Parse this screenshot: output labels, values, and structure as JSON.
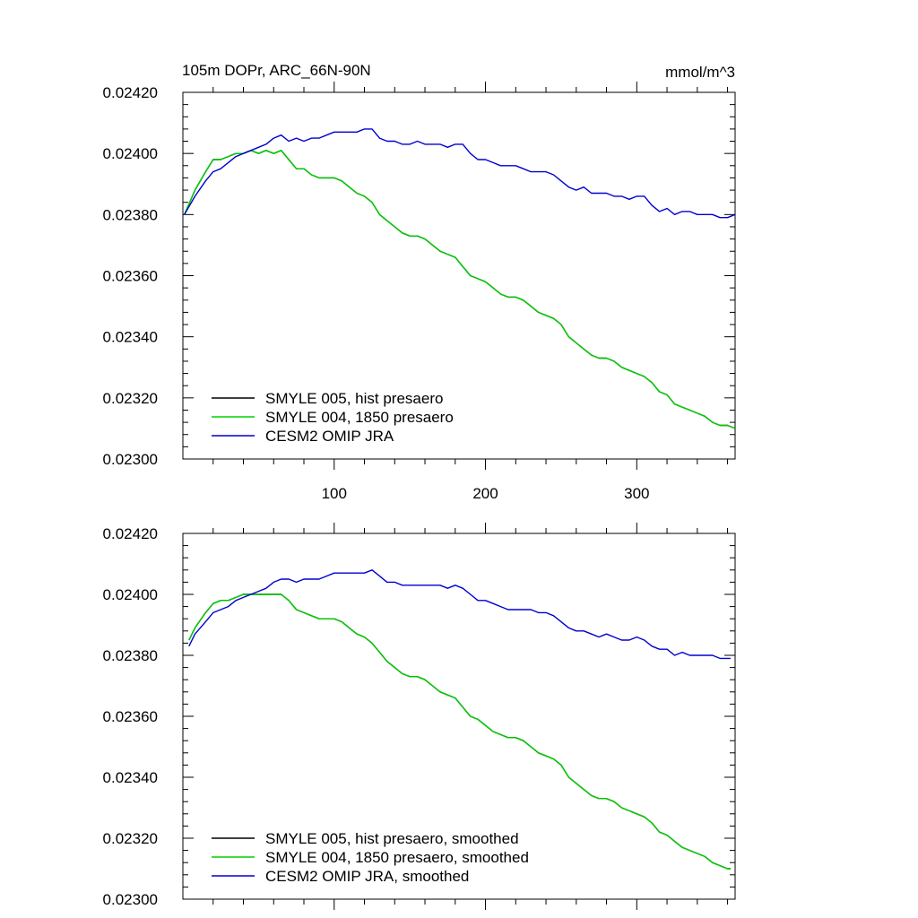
{
  "header": {
    "title": "105m DOPr, ARC_66N-90N",
    "units": "mmol/m^3"
  },
  "chart_data": [
    {
      "type": "line",
      "xlim": [
        0,
        365
      ],
      "ylim": [
        0.023,
        0.0242
      ],
      "yticks": [
        "0.02300",
        "0.02320",
        "0.02340",
        "0.02360",
        "0.02380",
        "0.02400",
        "0.02420"
      ],
      "xticks": [
        "100",
        "200",
        "300"
      ],
      "legend_position": "bottom-left",
      "series": [
        {
          "name": "SMYLE 005, hist presaero",
          "color": "#000000",
          "x": [
            1,
            8,
            15,
            20,
            25,
            30,
            35,
            40,
            45,
            50,
            55,
            60,
            65,
            70,
            75,
            80,
            85,
            90,
            95,
            100,
            105,
            110,
            115,
            120,
            125,
            130,
            135,
            140,
            145,
            150,
            155,
            160,
            165,
            170,
            175,
            180,
            185,
            190,
            195,
            200,
            205,
            210,
            215,
            220,
            225,
            230,
            235,
            240,
            245,
            250,
            255,
            260,
            265,
            270,
            275,
            280,
            285,
            290,
            295,
            300,
            305,
            310,
            315,
            320,
            325,
            330,
            335,
            340,
            345,
            350,
            355,
            360,
            365
          ],
          "values": [
            0.0238,
            0.02388,
            0.02394,
            0.02398,
            0.02398,
            0.02399,
            0.024,
            0.024,
            0.02401,
            0.024,
            0.02401,
            0.024,
            0.02401,
            0.02398,
            0.02395,
            0.02395,
            0.02393,
            0.02392,
            0.02392,
            0.02392,
            0.02391,
            0.02389,
            0.02387,
            0.02386,
            0.02384,
            0.0238,
            0.02378,
            0.02376,
            0.02374,
            0.02373,
            0.02373,
            0.02372,
            0.0237,
            0.02368,
            0.02367,
            0.02366,
            0.02363,
            0.0236,
            0.02359,
            0.02358,
            0.02356,
            0.02354,
            0.02353,
            0.02353,
            0.02352,
            0.0235,
            0.02348,
            0.02347,
            0.02346,
            0.02344,
            0.0234,
            0.02338,
            0.02336,
            0.02334,
            0.02333,
            0.02333,
            0.02332,
            0.0233,
            0.02329,
            0.02328,
            0.02327,
            0.02325,
            0.02322,
            0.02321,
            0.02318,
            0.02317,
            0.02316,
            0.02315,
            0.02314,
            0.02312,
            0.02311,
            0.02311,
            0.0231
          ]
        },
        {
          "name": "SMYLE 004, 1850 presaero",
          "color": "#00d000",
          "x": [
            1,
            8,
            15,
            20,
            25,
            30,
            35,
            40,
            45,
            50,
            55,
            60,
            65,
            70,
            75,
            80,
            85,
            90,
            95,
            100,
            105,
            110,
            115,
            120,
            125,
            130,
            135,
            140,
            145,
            150,
            155,
            160,
            165,
            170,
            175,
            180,
            185,
            190,
            195,
            200,
            205,
            210,
            215,
            220,
            225,
            230,
            235,
            240,
            245,
            250,
            255,
            260,
            265,
            270,
            275,
            280,
            285,
            290,
            295,
            300,
            305,
            310,
            315,
            320,
            325,
            330,
            335,
            340,
            345,
            350,
            355,
            360,
            365
          ],
          "values": [
            0.0238,
            0.02388,
            0.02394,
            0.02398,
            0.02398,
            0.02399,
            0.024,
            0.024,
            0.02401,
            0.024,
            0.02401,
            0.024,
            0.02401,
            0.02398,
            0.02395,
            0.02395,
            0.02393,
            0.02392,
            0.02392,
            0.02392,
            0.02391,
            0.02389,
            0.02387,
            0.02386,
            0.02384,
            0.0238,
            0.02378,
            0.02376,
            0.02374,
            0.02373,
            0.02373,
            0.02372,
            0.0237,
            0.02368,
            0.02367,
            0.02366,
            0.02363,
            0.0236,
            0.02359,
            0.02358,
            0.02356,
            0.02354,
            0.02353,
            0.02353,
            0.02352,
            0.0235,
            0.02348,
            0.02347,
            0.02346,
            0.02344,
            0.0234,
            0.02338,
            0.02336,
            0.02334,
            0.02333,
            0.02333,
            0.02332,
            0.0233,
            0.02329,
            0.02328,
            0.02327,
            0.02325,
            0.02322,
            0.02321,
            0.02318,
            0.02317,
            0.02316,
            0.02315,
            0.02314,
            0.02312,
            0.02311,
            0.02311,
            0.0231
          ]
        },
        {
          "name": "CESM2 OMIP JRA",
          "color": "#0000d0",
          "x": [
            1,
            8,
            15,
            20,
            25,
            30,
            35,
            40,
            45,
            50,
            55,
            60,
            65,
            70,
            75,
            80,
            85,
            90,
            95,
            100,
            105,
            110,
            115,
            120,
            125,
            130,
            135,
            140,
            145,
            150,
            155,
            160,
            165,
            170,
            175,
            180,
            185,
            190,
            195,
            200,
            205,
            210,
            215,
            220,
            225,
            230,
            235,
            240,
            245,
            250,
            255,
            260,
            265,
            270,
            275,
            280,
            285,
            290,
            295,
            300,
            305,
            310,
            315,
            320,
            325,
            330,
            335,
            340,
            345,
            350,
            355,
            360,
            365
          ],
          "values": [
            0.0238,
            0.02386,
            0.02391,
            0.02394,
            0.02395,
            0.02397,
            0.02399,
            0.024,
            0.02401,
            0.02402,
            0.02403,
            0.02405,
            0.02406,
            0.02404,
            0.02405,
            0.02404,
            0.02405,
            0.02405,
            0.02406,
            0.02407,
            0.02407,
            0.02407,
            0.02407,
            0.02408,
            0.02408,
            0.02405,
            0.02404,
            0.02404,
            0.02403,
            0.02403,
            0.02404,
            0.02403,
            0.02403,
            0.02403,
            0.02402,
            0.02403,
            0.02403,
            0.024,
            0.02398,
            0.02398,
            0.02397,
            0.02396,
            0.02396,
            0.02396,
            0.02395,
            0.02394,
            0.02394,
            0.02394,
            0.02393,
            0.02391,
            0.02389,
            0.02388,
            0.02389,
            0.02387,
            0.02387,
            0.02387,
            0.02386,
            0.02386,
            0.02385,
            0.02386,
            0.02386,
            0.02383,
            0.02381,
            0.02382,
            0.0238,
            0.02381,
            0.02381,
            0.0238,
            0.0238,
            0.0238,
            0.02379,
            0.02379,
            0.0238
          ]
        }
      ]
    },
    {
      "type": "line",
      "xlim": [
        0,
        365
      ],
      "ylim": [
        0.023,
        0.0242
      ],
      "yticks": [
        "0.02300",
        "0.02320",
        "0.02340",
        "0.02360",
        "0.02380",
        "0.02400",
        "0.02420"
      ],
      "xticks": [],
      "legend_position": "bottom-left",
      "series": [
        {
          "name": "SMYLE 005, hist presaero, smoothed",
          "color": "#000000",
          "x": [
            4,
            8,
            15,
            20,
            25,
            30,
            35,
            40,
            45,
            50,
            55,
            60,
            65,
            70,
            75,
            80,
            85,
            90,
            95,
            100,
            105,
            110,
            115,
            120,
            125,
            130,
            135,
            140,
            145,
            150,
            155,
            160,
            165,
            170,
            175,
            180,
            185,
            190,
            195,
            200,
            205,
            210,
            215,
            220,
            225,
            230,
            235,
            240,
            245,
            250,
            255,
            260,
            265,
            270,
            275,
            280,
            285,
            290,
            295,
            300,
            305,
            310,
            315,
            320,
            325,
            330,
            335,
            340,
            345,
            350,
            355,
            360,
            362
          ],
          "values": [
            0.02385,
            0.02389,
            0.02394,
            0.02397,
            0.02398,
            0.02398,
            0.02399,
            0.024,
            0.024,
            0.024,
            0.024,
            0.024,
            0.024,
            0.02398,
            0.02395,
            0.02394,
            0.02393,
            0.02392,
            0.02392,
            0.02392,
            0.02391,
            0.02389,
            0.02387,
            0.02386,
            0.02384,
            0.02381,
            0.02378,
            0.02376,
            0.02374,
            0.02373,
            0.02373,
            0.02372,
            0.0237,
            0.02368,
            0.02367,
            0.02366,
            0.02363,
            0.0236,
            0.02359,
            0.02357,
            0.02355,
            0.02354,
            0.02353,
            0.02353,
            0.02352,
            0.0235,
            0.02348,
            0.02347,
            0.02346,
            0.02344,
            0.0234,
            0.02338,
            0.02336,
            0.02334,
            0.02333,
            0.02333,
            0.02332,
            0.0233,
            0.02329,
            0.02328,
            0.02327,
            0.02325,
            0.02322,
            0.02321,
            0.02319,
            0.02317,
            0.02316,
            0.02315,
            0.02314,
            0.02312,
            0.02311,
            0.0231,
            0.0231
          ]
        },
        {
          "name": "SMYLE 004, 1850 presaero, smoothed",
          "color": "#00d000",
          "x": [
            4,
            8,
            15,
            20,
            25,
            30,
            35,
            40,
            45,
            50,
            55,
            60,
            65,
            70,
            75,
            80,
            85,
            90,
            95,
            100,
            105,
            110,
            115,
            120,
            125,
            130,
            135,
            140,
            145,
            150,
            155,
            160,
            165,
            170,
            175,
            180,
            185,
            190,
            195,
            200,
            205,
            210,
            215,
            220,
            225,
            230,
            235,
            240,
            245,
            250,
            255,
            260,
            265,
            270,
            275,
            280,
            285,
            290,
            295,
            300,
            305,
            310,
            315,
            320,
            325,
            330,
            335,
            340,
            345,
            350,
            355,
            360,
            362
          ],
          "values": [
            0.02385,
            0.02389,
            0.02394,
            0.02397,
            0.02398,
            0.02398,
            0.02399,
            0.024,
            0.024,
            0.024,
            0.024,
            0.024,
            0.024,
            0.02398,
            0.02395,
            0.02394,
            0.02393,
            0.02392,
            0.02392,
            0.02392,
            0.02391,
            0.02389,
            0.02387,
            0.02386,
            0.02384,
            0.02381,
            0.02378,
            0.02376,
            0.02374,
            0.02373,
            0.02373,
            0.02372,
            0.0237,
            0.02368,
            0.02367,
            0.02366,
            0.02363,
            0.0236,
            0.02359,
            0.02357,
            0.02355,
            0.02354,
            0.02353,
            0.02353,
            0.02352,
            0.0235,
            0.02348,
            0.02347,
            0.02346,
            0.02344,
            0.0234,
            0.02338,
            0.02336,
            0.02334,
            0.02333,
            0.02333,
            0.02332,
            0.0233,
            0.02329,
            0.02328,
            0.02327,
            0.02325,
            0.02322,
            0.02321,
            0.02319,
            0.02317,
            0.02316,
            0.02315,
            0.02314,
            0.02312,
            0.02311,
            0.0231,
            0.0231
          ]
        },
        {
          "name": "CESM2 OMIP JRA, smoothed",
          "color": "#0000d0",
          "x": [
            4,
            8,
            15,
            20,
            25,
            30,
            35,
            40,
            45,
            50,
            55,
            60,
            65,
            70,
            75,
            80,
            85,
            90,
            95,
            100,
            105,
            110,
            115,
            120,
            125,
            130,
            135,
            140,
            145,
            150,
            155,
            160,
            165,
            170,
            175,
            180,
            185,
            190,
            195,
            200,
            205,
            210,
            215,
            220,
            225,
            230,
            235,
            240,
            245,
            250,
            255,
            260,
            265,
            270,
            275,
            280,
            285,
            290,
            295,
            300,
            305,
            310,
            315,
            320,
            325,
            330,
            335,
            340,
            345,
            350,
            355,
            360,
            362
          ],
          "values": [
            0.02383,
            0.02387,
            0.02391,
            0.02394,
            0.02395,
            0.02396,
            0.02398,
            0.02399,
            0.024,
            0.02401,
            0.02402,
            0.02404,
            0.02405,
            0.02405,
            0.02404,
            0.02405,
            0.02405,
            0.02405,
            0.02406,
            0.02407,
            0.02407,
            0.02407,
            0.02407,
            0.02407,
            0.02408,
            0.02406,
            0.02404,
            0.02404,
            0.02403,
            0.02403,
            0.02403,
            0.02403,
            0.02403,
            0.02403,
            0.02402,
            0.02403,
            0.02402,
            0.024,
            0.02398,
            0.02398,
            0.02397,
            0.02396,
            0.02395,
            0.02395,
            0.02395,
            0.02395,
            0.02394,
            0.02394,
            0.02393,
            0.02391,
            0.02389,
            0.02388,
            0.02388,
            0.02387,
            0.02386,
            0.02387,
            0.02386,
            0.02385,
            0.02385,
            0.02386,
            0.02385,
            0.02383,
            0.02382,
            0.02382,
            0.0238,
            0.02381,
            0.0238,
            0.0238,
            0.0238,
            0.0238,
            0.02379,
            0.02379,
            0.02379
          ]
        }
      ]
    }
  ]
}
